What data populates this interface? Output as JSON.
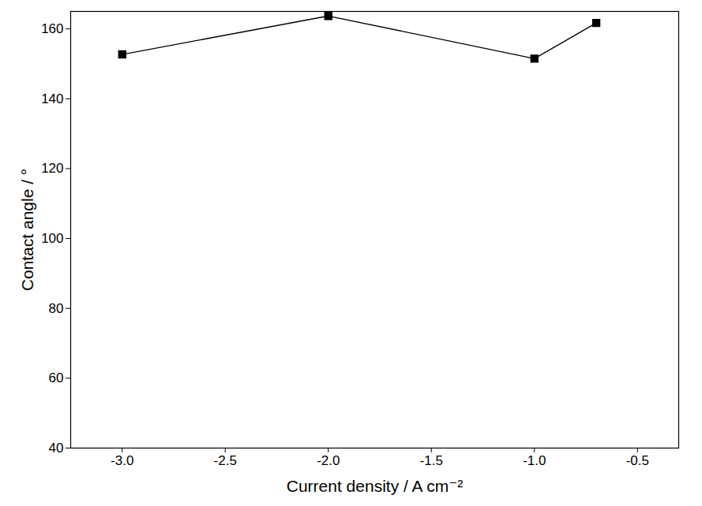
{
  "chart_data": {
    "type": "line",
    "x_label": "Current density / A cm⁻²",
    "y_label": "Contact angle / °",
    "x": [
      -3.0,
      -2.0,
      -1.0,
      -0.7
    ],
    "series": [
      {
        "values": [
          152.7,
          163.7,
          151.5,
          161.7
        ],
        "color": "#000000",
        "marker": "square",
        "line_style": "solid"
      }
    ],
    "xlim": [
      -3.25,
      -0.3
    ],
    "xticks": [
      {
        "value": -3.0,
        "label": "-3.0"
      },
      {
        "value": -2.5,
        "label": "-2.5"
      },
      {
        "value": -2.0,
        "label": "-2.0"
      },
      {
        "value": -1.5,
        "label": "-1.5"
      },
      {
        "value": -1.0,
        "label": "-1.0"
      },
      {
        "value": -0.5,
        "label": "-0.5"
      }
    ],
    "ylim": [
      40,
      165
    ],
    "yticks": [
      40,
      60,
      80,
      100,
      120,
      140,
      160
    ],
    "grid": false
  }
}
